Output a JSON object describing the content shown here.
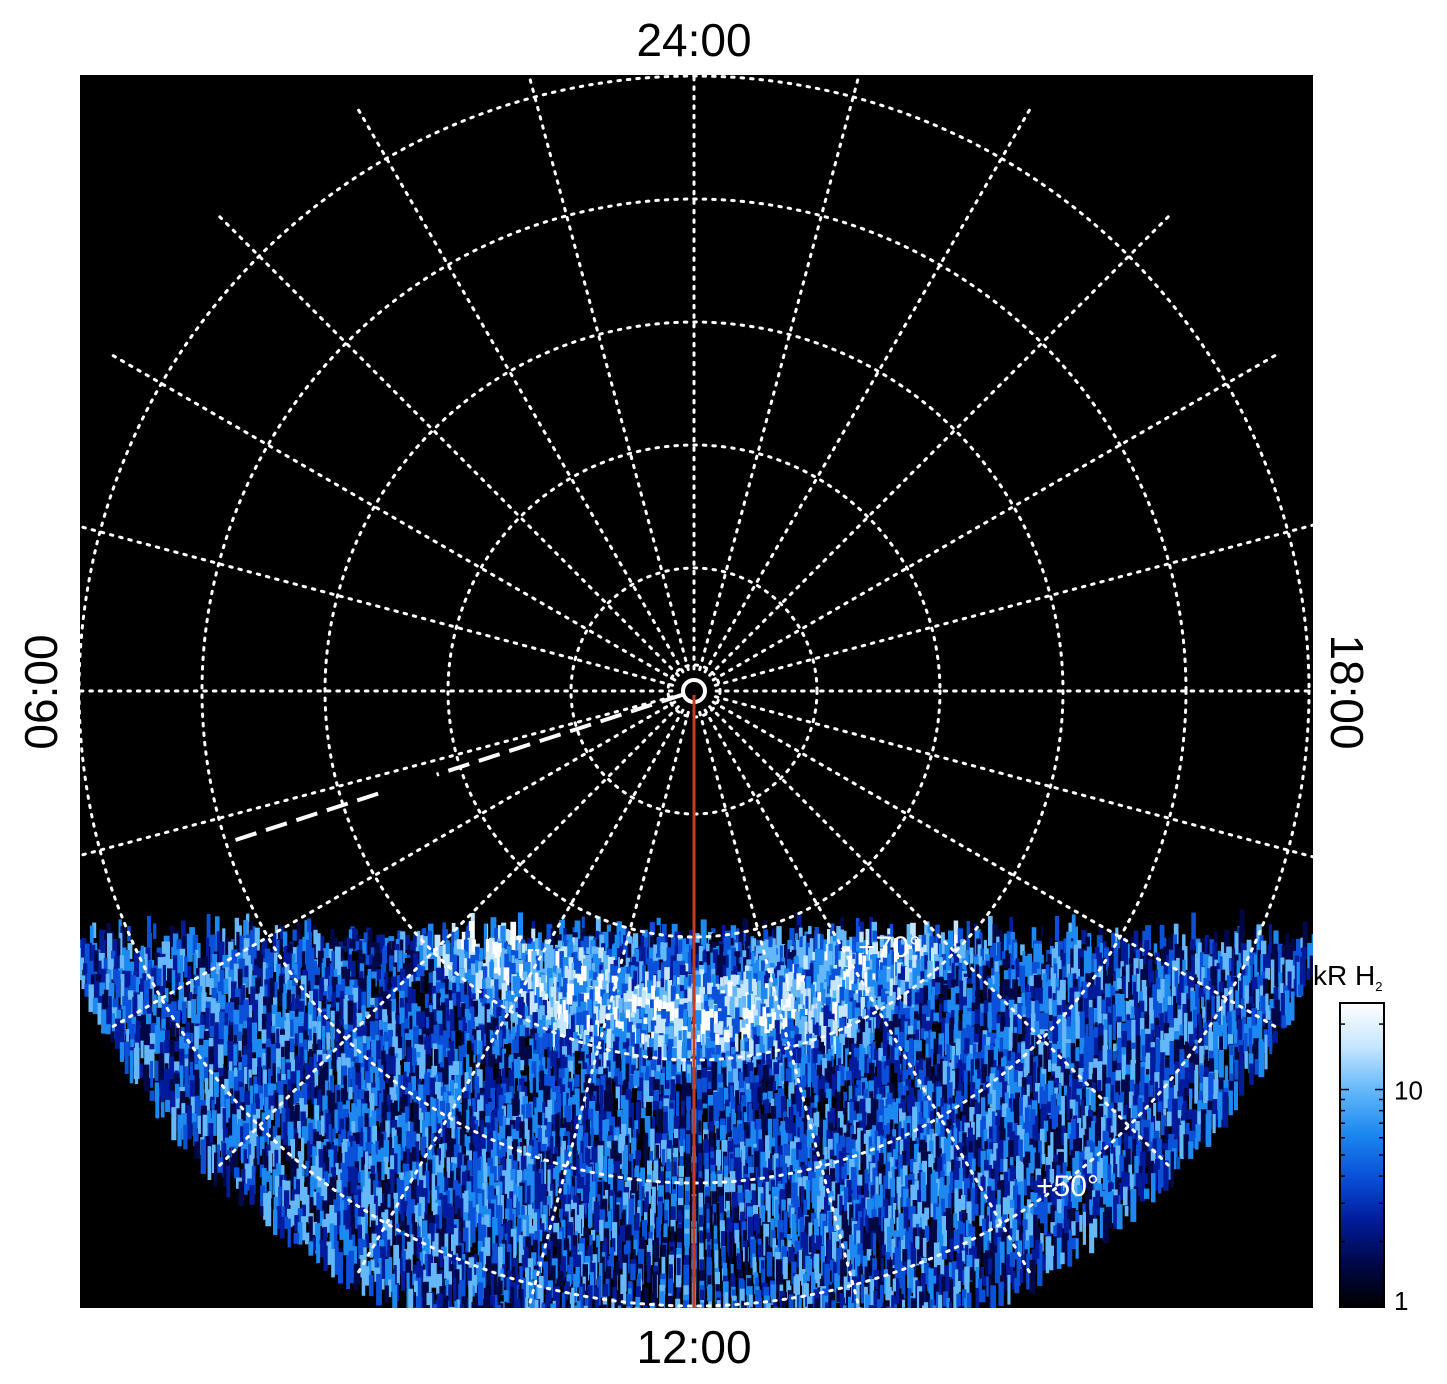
{
  "chart_data": {
    "type": "heatmap",
    "projection": "polar",
    "local_time_labels": {
      "top": "24:00",
      "left": "06:00",
      "right": "18:00",
      "bottom": "12:00"
    },
    "latitude_circles_deg": [
      80,
      70,
      60,
      50,
      40
    ],
    "latitude_labels": [
      {
        "text": "+70°",
        "value": 70
      },
      {
        "text": "+50°",
        "value": 50
      }
    ],
    "meridian_spacing_hours": 1,
    "grid": true,
    "colorbar": {
      "title": "kR H",
      "title_subscript": "2",
      "scale": "log",
      "range": [
        1,
        25
      ],
      "ticks": [
        {
          "label": "1",
          "value": 1
        },
        {
          "label": "10",
          "value": 10
        }
      ],
      "colors": [
        "#000000",
        "#000848",
        "#001c9c",
        "#0a50d8",
        "#1c88f0",
        "#64b8fa",
        "#c6e6ff",
        "#ffffff"
      ]
    },
    "overlays": [
      {
        "kind": "line",
        "color": "#c83c1e",
        "local_time_hours": 12,
        "from_colat_deg": 0,
        "to_colat_deg": 55
      },
      {
        "kind": "dashed-line",
        "color": "#ffffff",
        "local_time_hours": 7.2,
        "segments_colat_deg": [
          [
            1,
            22
          ],
          [
            27,
            40
          ]
        ]
      }
    ],
    "emission_region": {
      "colat_max_deg": 55
    },
    "auroral_arc": {
      "colat_deg": 27,
      "peak_kR": 20
    }
  }
}
